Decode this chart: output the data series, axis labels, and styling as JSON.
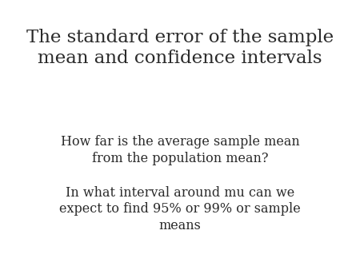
{
  "background_color": "#ffffff",
  "title_line1": "The standard error of the sample",
  "title_line2": "mean and confidence intervals",
  "title_fontsize": 16.5,
  "title_color": "#2a2a2a",
  "bullet1_line1": "How far is the average sample mean",
  "bullet1_line2": "from the population mean?",
  "bullet2_line1": "In what interval around mu can we",
  "bullet2_line2": "expect to find 95% or 99% or sample",
  "bullet2_line3": "means",
  "body_fontsize": 11.5,
  "body_color": "#2a2a2a"
}
